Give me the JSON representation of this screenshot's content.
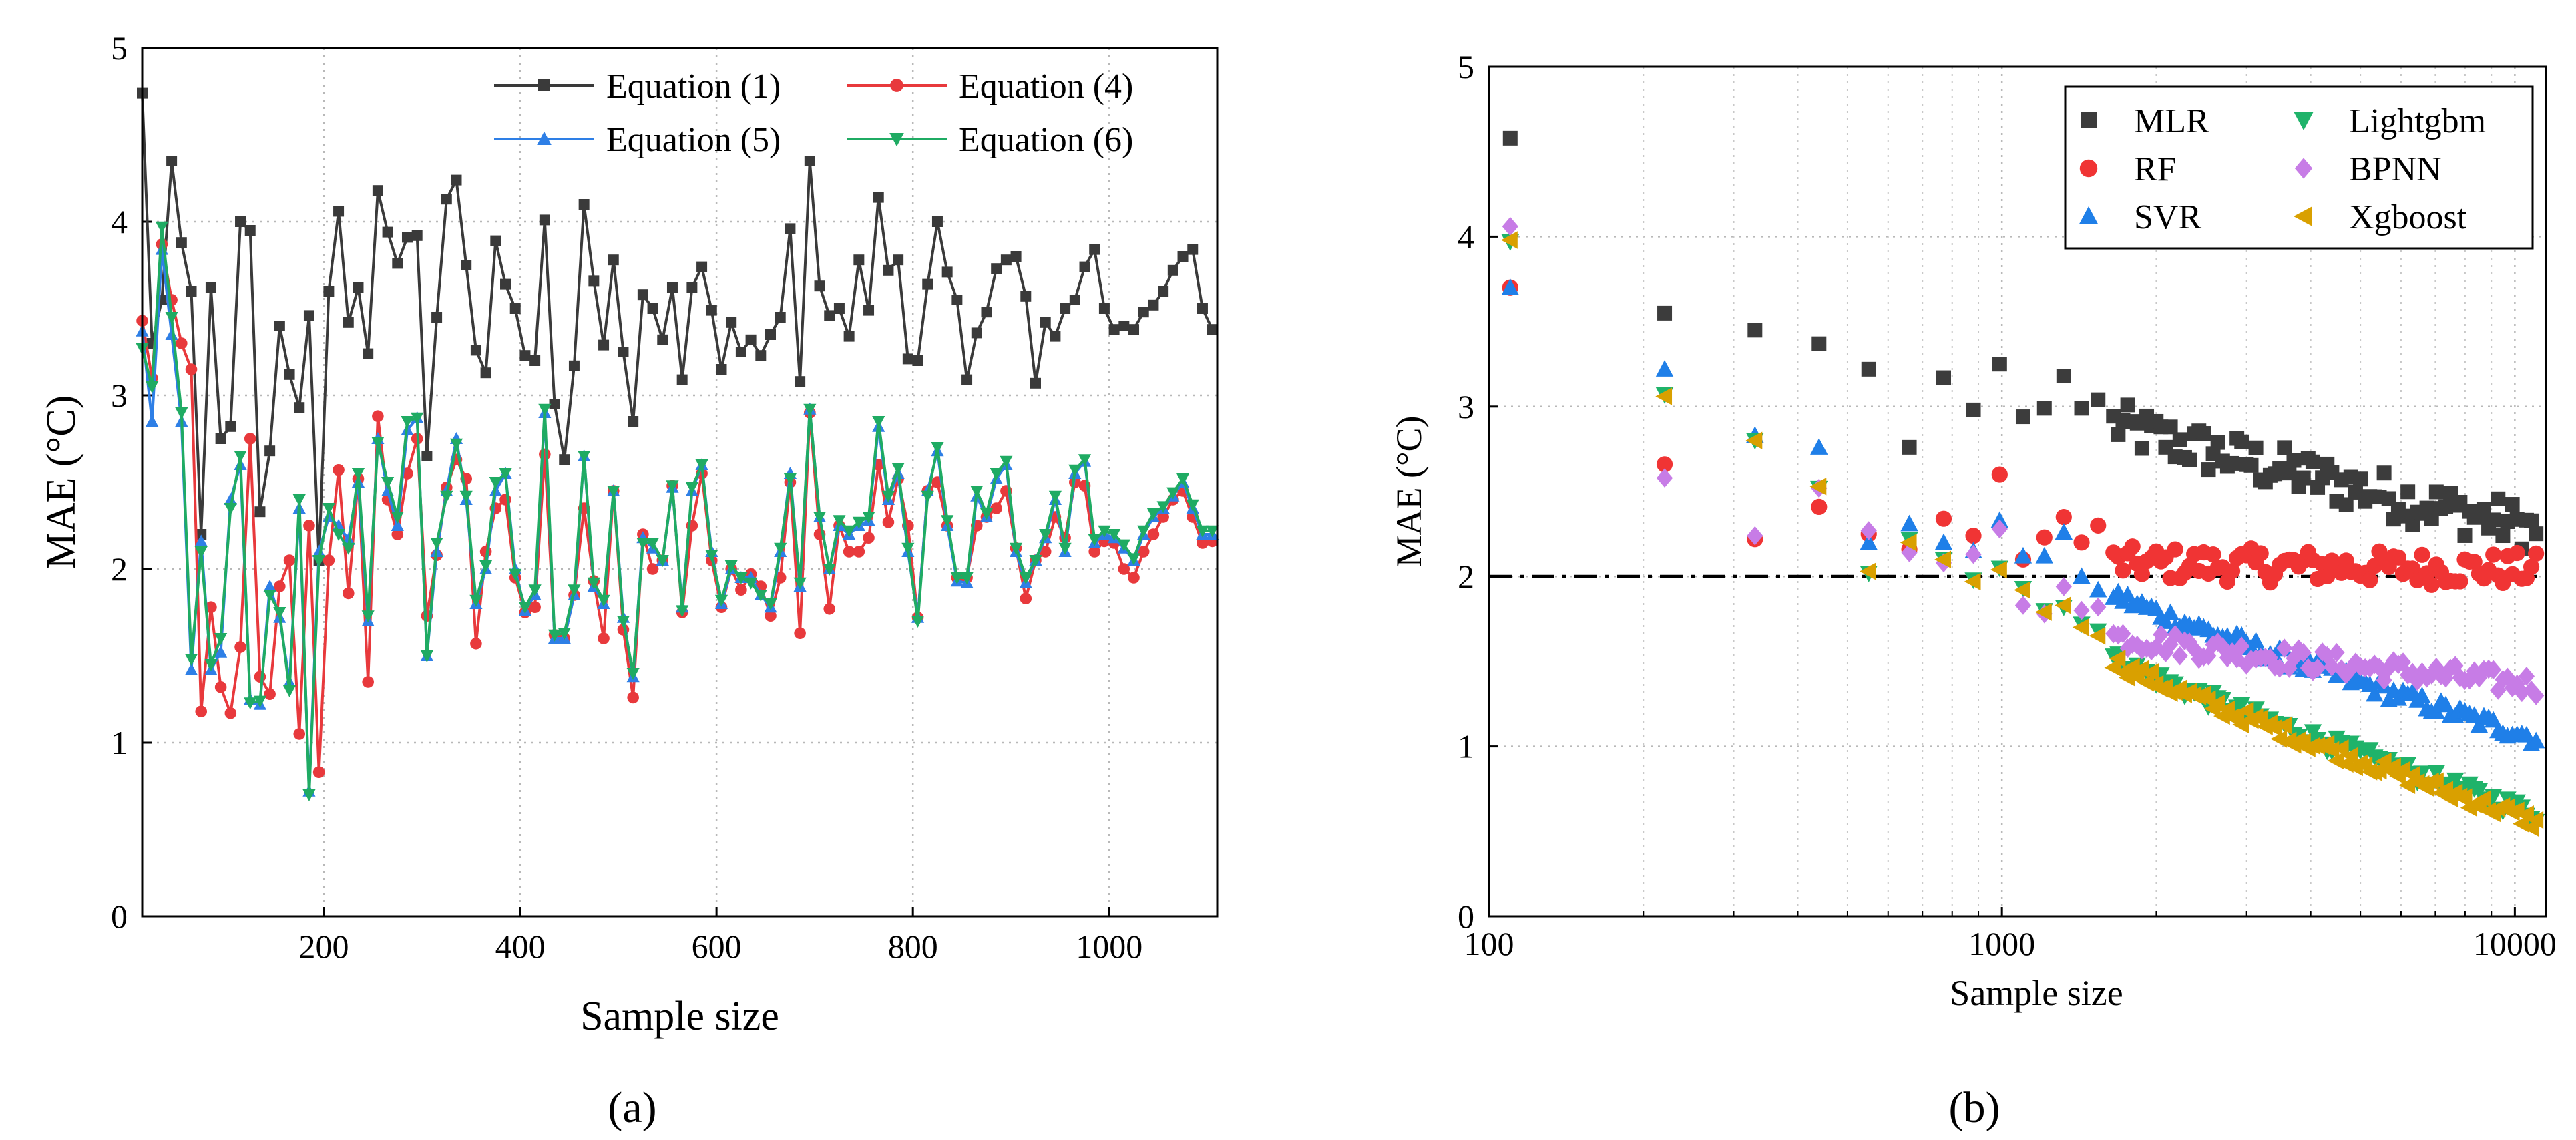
{
  "chart_data": [
    {
      "type": "line",
      "panel_label": "(a)",
      "xlabel": "Sample size",
      "ylabel": "MAE (°C)",
      "xlim": [
        15,
        1110
      ],
      "ylim": [
        0,
        5
      ],
      "x_ticks": [
        200,
        400,
        600,
        800,
        1000
      ],
      "y_ticks": [
        0,
        1,
        2,
        3,
        4,
        5
      ],
      "grid": true,
      "legend_position": "top-right",
      "x": [
        15,
        25,
        35,
        45,
        55,
        65,
        75,
        85,
        95,
        105,
        115,
        125,
        135,
        145,
        155,
        165,
        175,
        185,
        195,
        205,
        215,
        225,
        235,
        245,
        255,
        265,
        275,
        285,
        295,
        305,
        315,
        325,
        335,
        345,
        355,
        365,
        375,
        385,
        395,
        405,
        415,
        425,
        435,
        445,
        455,
        465,
        475,
        485,
        495,
        505,
        515,
        525,
        535,
        545,
        555,
        565,
        575,
        585,
        595,
        605,
        615,
        625,
        635,
        645,
        655,
        665,
        675,
        685,
        695,
        705,
        715,
        725,
        735,
        745,
        755,
        765,
        775,
        785,
        795,
        805,
        815,
        825,
        835,
        845,
        855,
        865,
        875,
        885,
        895,
        905,
        915,
        925,
        935,
        945,
        955,
        965,
        975,
        985,
        995,
        1005,
        1015,
        1025,
        1035,
        1045,
        1055,
        1065,
        1075,
        1085,
        1095,
        1105
      ],
      "series": [
        {
          "name": "Equation (1)",
          "color": "#3a3a3a",
          "marker": "square",
          "values": [
            4.74,
            3.3,
            3.55,
            4.35,
            3.88,
            3.6,
            2.2,
            3.62,
            2.75,
            2.82,
            4.0,
            3.95,
            2.33,
            2.68,
            3.4,
            3.12,
            2.93,
            3.46,
            2.05,
            3.6,
            4.06,
            3.42,
            3.62,
            3.24,
            4.18,
            3.94,
            3.76,
            3.91,
            3.92,
            2.65,
            3.45,
            4.13,
            4.24,
            3.75,
            3.26,
            3.13,
            3.89,
            3.64,
            3.5,
            3.23,
            3.2,
            4.01,
            2.95,
            2.63,
            3.17,
            4.1,
            3.66,
            3.29,
            3.78,
            3.25,
            2.85,
            3.58,
            3.5,
            3.32,
            3.62,
            3.09,
            3.62,
            3.74,
            3.49,
            3.15,
            3.42,
            3.25,
            3.32,
            3.23,
            3.35,
            3.45,
            3.96,
            3.08,
            4.35,
            3.63,
            3.46,
            3.5,
            3.34,
            3.78,
            3.49,
            4.14,
            3.72,
            3.78,
            3.21,
            3.2,
            3.64,
            4.0,
            3.71,
            3.55,
            3.09,
            3.36,
            3.48,
            3.73,
            3.78,
            3.8,
            3.57,
            3.07,
            3.42,
            3.34,
            3.5,
            3.55,
            3.74,
            3.84,
            3.5,
            3.38,
            3.4,
            3.38,
            3.48,
            3.52,
            3.6,
            3.72,
            3.8,
            3.84,
            3.5,
            3.38
          ]
        },
        {
          "name": "Equation (4)",
          "color": "#e8393c",
          "marker": "circle",
          "values": [
            3.43,
            3.1,
            3.87,
            3.55,
            3.3,
            3.15,
            1.18,
            1.78,
            1.32,
            1.17,
            1.55,
            2.75,
            1.38,
            1.28,
            1.9,
            2.05,
            1.05,
            2.25,
            0.83,
            2.05,
            2.57,
            1.86,
            2.52,
            1.35,
            2.88,
            2.4,
            2.2,
            2.55,
            2.75,
            1.73,
            2.08,
            2.47,
            2.63,
            2.52,
            1.57,
            2.1,
            2.35,
            2.4,
            1.95,
            1.75,
            1.78,
            2.66,
            1.62,
            1.6,
            1.85,
            2.35,
            1.93,
            1.6,
            2.45,
            1.65,
            1.26,
            2.2,
            2.0,
            2.05,
            2.48,
            1.75,
            2.25,
            2.55,
            2.05,
            1.78,
            2.0,
            1.88,
            1.97,
            1.9,
            1.73,
            1.95,
            2.5,
            1.63,
            2.9,
            2.2,
            1.77,
            2.25,
            2.1,
            2.1,
            2.18,
            2.6,
            2.27,
            2.52,
            2.25,
            1.72,
            2.45,
            2.5,
            2.25,
            1.95,
            1.95,
            2.25,
            2.3,
            2.35,
            2.45,
            2.12,
            1.83,
            2.05,
            2.1,
            2.3,
            2.18,
            2.5,
            2.48,
            2.1,
            2.16,
            2.15,
            2.0,
            1.95,
            2.1,
            2.2,
            2.3,
            2.4,
            2.45,
            2.3,
            2.15,
            2.16
          ]
        },
        {
          "name": "Equation (5)",
          "color": "#2e7fe6",
          "marker": "triangle-up",
          "values": [
            3.37,
            2.85,
            3.84,
            3.35,
            2.85,
            1.42,
            2.16,
            1.42,
            1.52,
            2.4,
            2.6,
            1.25,
            1.22,
            1.9,
            1.72,
            1.35,
            2.35,
            0.72,
            2.1,
            2.3,
            2.25,
            2.17,
            2.5,
            1.7,
            2.75,
            2.45,
            2.25,
            2.8,
            2.87,
            1.5,
            2.1,
            2.45,
            2.75,
            2.4,
            1.8,
            2.0,
            2.45,
            2.55,
            2.0,
            1.76,
            1.85,
            2.9,
            1.6,
            1.6,
            1.85,
            2.65,
            1.9,
            1.8,
            2.45,
            1.72,
            1.38,
            2.18,
            2.12,
            2.05,
            2.47,
            1.78,
            2.45,
            2.6,
            2.1,
            1.8,
            2.0,
            1.95,
            1.95,
            1.85,
            1.78,
            2.1,
            2.55,
            1.9,
            2.92,
            2.3,
            2.0,
            2.25,
            2.2,
            2.25,
            2.28,
            2.82,
            2.4,
            2.55,
            2.1,
            1.72,
            2.45,
            2.68,
            2.25,
            1.93,
            1.92,
            2.42,
            2.3,
            2.52,
            2.6,
            2.1,
            1.92,
            2.05,
            2.18,
            2.4,
            2.1,
            2.55,
            2.62,
            2.15,
            2.2,
            2.18,
            2.12,
            2.05,
            2.2,
            2.3,
            2.35,
            2.42,
            2.5,
            2.35,
            2.2,
            2.2
          ]
        },
        {
          "name": "Equation (6)",
          "color": "#1fab63",
          "marker": "triangle-down",
          "values": [
            3.27,
            3.05,
            3.97,
            3.45,
            2.9,
            1.48,
            2.1,
            1.45,
            1.6,
            2.35,
            2.65,
            1.23,
            1.24,
            1.85,
            1.75,
            1.3,
            2.4,
            0.7,
            2.05,
            2.35,
            2.2,
            2.12,
            2.55,
            1.73,
            2.73,
            2.5,
            2.3,
            2.85,
            2.87,
            1.5,
            2.15,
            2.42,
            2.72,
            2.42,
            1.82,
            2.02,
            2.5,
            2.55,
            1.97,
            1.78,
            1.88,
            2.92,
            1.62,
            1.63,
            1.88,
            2.65,
            1.92,
            1.82,
            2.45,
            1.7,
            1.4,
            2.15,
            2.15,
            2.05,
            2.48,
            1.76,
            2.47,
            2.6,
            2.08,
            1.82,
            2.02,
            1.95,
            1.92,
            1.85,
            1.8,
            2.12,
            2.52,
            1.92,
            2.92,
            2.3,
            2.0,
            2.28,
            2.22,
            2.27,
            2.3,
            2.85,
            2.42,
            2.58,
            2.12,
            1.7,
            2.42,
            2.7,
            2.28,
            1.95,
            1.95,
            2.45,
            2.32,
            2.55,
            2.62,
            2.12,
            1.95,
            2.05,
            2.2,
            2.42,
            2.12,
            2.57,
            2.63,
            2.17,
            2.22,
            2.2,
            2.14,
            2.06,
            2.22,
            2.32,
            2.36,
            2.44,
            2.52,
            2.37,
            2.22,
            2.22
          ]
        }
      ]
    },
    {
      "type": "scatter",
      "panel_label": "(b)",
      "xlabel": "Sample size",
      "ylabel": "MAE (°C)",
      "x_scale": "log",
      "xlim": [
        100,
        11500
      ],
      "ylim": [
        0,
        5
      ],
      "x_ticks": [
        100,
        1000,
        10000
      ],
      "y_ticks": [
        0,
        1,
        2,
        3,
        4,
        5
      ],
      "grid": true,
      "reference_line": {
        "y": 2,
        "style": "dashed",
        "color": "#000000"
      },
      "legend_position": "top-right",
      "series_style": [
        {
          "name": "MLR",
          "color": "#3c3c3c",
          "marker": "square"
        },
        {
          "name": "RF",
          "color": "#f03434",
          "marker": "circle"
        },
        {
          "name": "SVR",
          "color": "#1f7fe8",
          "marker": "triangle-up"
        },
        {
          "name": "Lightgbm",
          "color": "#1fb36a",
          "marker": "triangle-down"
        },
        {
          "name": "BPNN",
          "color": "#c77ce6",
          "marker": "diamond"
        },
        {
          "name": "Xgboost",
          "color": "#d9a000",
          "marker": "triangle-left"
        }
      ],
      "x_sparse": [
        110,
        220,
        330,
        440,
        550,
        660,
        770,
        880,
        990,
        1100,
        1210,
        1320,
        1430,
        1540
      ],
      "sparse_values": {
        "MLR": [
          4.58,
          3.55,
          3.45,
          3.37,
          3.22,
          2.76,
          3.17,
          2.98,
          3.25,
          2.94,
          2.99,
          3.18,
          2.99,
          3.04
        ],
        "RF": [
          3.7,
          2.66,
          2.22,
          2.41,
          2.25,
          2.16,
          2.34,
          2.24,
          2.6,
          2.1,
          2.23,
          2.35,
          2.2,
          2.3
        ],
        "SVR": [
          3.7,
          3.22,
          2.83,
          2.76,
          2.2,
          2.31,
          2.2,
          2.15,
          2.33,
          2.12,
          2.12,
          2.26,
          2.0,
          1.92
        ],
        "Lightgbm": [
          3.97,
          3.07,
          2.8,
          2.52,
          2.02,
          2.22,
          2.1,
          1.98,
          2.05,
          1.93,
          1.8,
          1.82,
          1.72,
          1.68
        ],
        "BPNN": [
          4.06,
          2.58,
          2.24,
          2.52,
          2.27,
          2.14,
          2.08,
          2.13,
          2.28,
          1.83,
          1.78,
          1.94,
          1.8,
          1.82
        ],
        "Xgboost": [
          3.98,
          3.06,
          2.8,
          2.53,
          2.03,
          2.2,
          2.1,
          1.97,
          2.04,
          1.92,
          1.79,
          1.83,
          1.7,
          1.65
        ]
      },
      "dense_range": {
        "x_start": 1650,
        "x_end": 11000,
        "count": 90
      },
      "dense_trends": {
        "MLR": {
          "start": 2.9,
          "end": 2.28,
          "jitter": 0.14
        },
        "RF": {
          "start": 2.08,
          "end": 2.04,
          "jitter": 0.1
        },
        "SVR": {
          "start": 1.9,
          "end": 1.05,
          "jitter": 0.05
        },
        "Lightgbm": {
          "start": 1.52,
          "end": 0.6,
          "jitter": 0.05
        },
        "BPNN": {
          "start": 1.65,
          "end": 1.36,
          "jitter": 0.07
        },
        "Xgboost": {
          "start": 1.5,
          "end": 0.55,
          "jitter": 0.05
        }
      }
    }
  ]
}
